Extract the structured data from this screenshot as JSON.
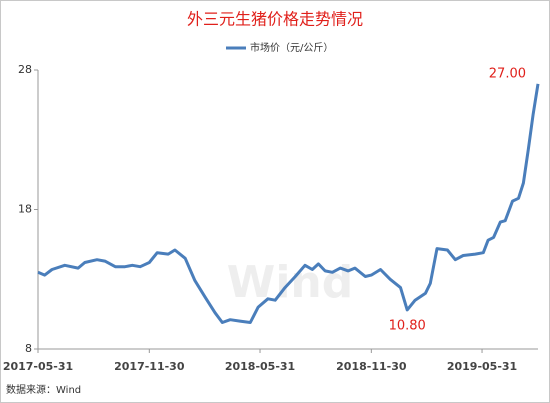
{
  "chart_data": {
    "type": "line",
    "title": "外三元生猪价格走势情况",
    "watermark": "Wind",
    "source": "数据来源：Wind",
    "x": [
      "2017-05-31",
      "2017-06-11",
      "2017-06-23",
      "2017-07-14",
      "2017-08-05",
      "2017-08-16",
      "2017-09-05",
      "2017-09-18",
      "2017-10-05",
      "2017-10-21",
      "2017-11-02",
      "2017-11-15",
      "2017-11-30",
      "2017-12-13",
      "2017-12-31",
      "2018-01-11",
      "2018-01-28",
      "2018-02-13",
      "2018-03-02",
      "2018-03-18",
      "2018-03-30",
      "2018-04-12",
      "2018-04-28",
      "2018-05-15",
      "2018-05-28",
      "2018-06-13",
      "2018-06-25",
      "2018-07-11",
      "2018-07-28",
      "2018-08-13",
      "2018-08-25",
      "2018-09-04",
      "2018-09-15",
      "2018-09-27",
      "2018-10-10",
      "2018-10-23",
      "2018-11-03",
      "2018-11-20",
      "2018-11-30",
      "2018-12-15",
      "2018-12-31",
      "2019-01-17",
      "2019-01-28",
      "2019-02-10",
      "2019-02-27",
      "2019-03-07",
      "2019-03-18",
      "2019-04-04",
      "2019-04-17",
      "2019-04-30",
      "2019-05-20",
      "2019-06-02",
      "2019-06-10",
      "2019-06-19",
      "2019-06-30",
      "2019-07-08",
      "2019-07-20",
      "2019-07-30",
      "2019-08-07",
      "2019-08-15",
      "2019-08-23",
      "2019-08-31"
    ],
    "series": [
      {
        "name": "市场价（元/公斤）",
        "color": "#4a7ebb",
        "values": [
          13.5,
          13.3,
          13.7,
          14.0,
          13.8,
          14.2,
          14.4,
          14.3,
          13.9,
          13.9,
          14.0,
          13.9,
          14.2,
          14.9,
          14.8,
          15.1,
          14.5,
          12.9,
          11.7,
          10.6,
          9.9,
          10.1,
          10.0,
          9.9,
          11.0,
          11.6,
          11.5,
          12.4,
          13.2,
          14.0,
          13.7,
          14.1,
          13.6,
          13.5,
          13.8,
          13.6,
          13.8,
          13.2,
          13.3,
          13.7,
          13.0,
          12.4,
          10.8,
          11.5,
          12.0,
          12.7,
          15.2,
          15.1,
          14.4,
          14.7,
          14.8,
          14.9,
          15.8,
          16.0,
          17.1,
          17.2,
          18.6,
          18.8,
          19.9,
          22.3,
          24.8,
          27.0
        ]
      }
    ],
    "annotations": [
      {
        "x": "2019-01-28",
        "y": 10.8,
        "label": "10.80"
      },
      {
        "x": "2019-08-31",
        "y": 27.0,
        "label": "27.00"
      }
    ],
    "annotation_color": "#e0201b",
    "xlim": [
      "2017-05-31",
      "2019-08-31"
    ],
    "xticks": [
      "2017-05-31",
      "2017-11-30",
      "2018-05-31",
      "2018-11-30",
      "2019-05-31"
    ],
    "ylim": [
      8,
      28
    ],
    "yticks": [
      8,
      18,
      28
    ],
    "grid": false
  }
}
